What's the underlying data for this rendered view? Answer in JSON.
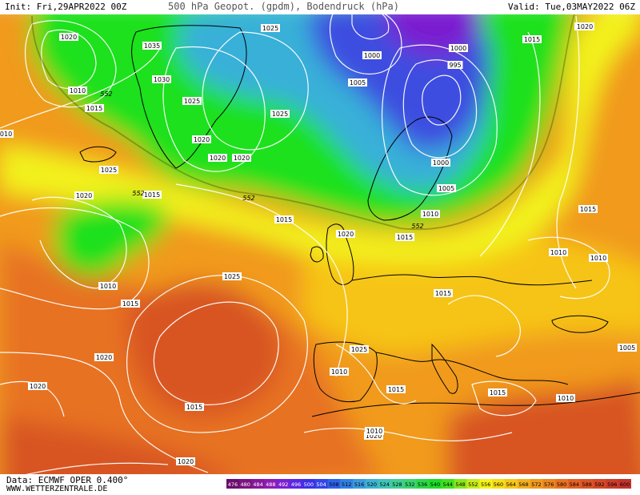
{
  "header": {
    "init": "Init: Fri,29APR2022 00Z",
    "title": "500 hPa Geopot. (gpdm), Bodendruck (hPa)",
    "valid": "Valid: Tue,03MAY2022 06Z"
  },
  "footer": {
    "data_source": "Data: ECMWF OPER 0.400°",
    "website": "WWW.WETTERZENTRALE.DE"
  },
  "colors": {
    "low": "#1ee11e",
    "mid_green": "#3ccf6a",
    "cyan": "#37b0d8",
    "blue": "#3c4ee0",
    "purple": "#7a1fd0",
    "yellow": "#f2f21a",
    "light_orange": "#f6c419",
    "orange": "#f19a1e",
    "dark_orange": "#e77222",
    "red_orange": "#d85424",
    "isobar": "#ffffff",
    "coastline": "#000000"
  },
  "scale": {
    "values": [
      "476",
      "480",
      "484",
      "488",
      "492",
      "496",
      "500",
      "504",
      "508",
      "512",
      "516",
      "520",
      "524",
      "528",
      "532",
      "536",
      "540",
      "544",
      "548",
      "552",
      "556",
      "560",
      "564",
      "568",
      "572",
      "576",
      "580",
      "584",
      "588",
      "592",
      "596",
      "600"
    ],
    "colors": [
      "#6a0e6e",
      "#7a147e",
      "#86189a",
      "#8c1cb4",
      "#7a20d2",
      "#5a28e2",
      "#3c30e6",
      "#3444e8",
      "#2e62e8",
      "#3080e4",
      "#3a9ade",
      "#3cb2d4",
      "#3ec4b8",
      "#3ecf96",
      "#3ad470",
      "#2cd84a",
      "#1edc28",
      "#42e020",
      "#8ae61c",
      "#c8ec1a",
      "#f4f418",
      "#f6de1a",
      "#f6c81a",
      "#f4b01c",
      "#f09a1e",
      "#ec8620",
      "#e87222",
      "#e26024",
      "#dc5426",
      "#d44828",
      "#cc3c2a",
      "#c4322c"
    ]
  },
  "isobar_labels": [
    "1020",
    "1035",
    "1025",
    "1030",
    "1025",
    "1025",
    "1020",
    "1010",
    "1015",
    "1025",
    "1020",
    "1020",
    "1020",
    "1015",
    "1015",
    "1025",
    "1010",
    "1015",
    "1000",
    "1005",
    "1000",
    "995",
    "1000",
    "1005",
    "1010",
    "1015",
    "1020",
    "1015",
    "1015",
    "1025",
    "1020",
    "1020",
    "1015",
    "1010",
    "1010",
    "1015",
    "1020",
    "1020",
    "1025",
    "1010",
    "1015",
    "1010",
    "1015",
    "1010",
    "1020",
    "1005",
    "1010"
  ],
  "geopotential_labels": [
    "552",
    "552",
    "552",
    "552"
  ]
}
